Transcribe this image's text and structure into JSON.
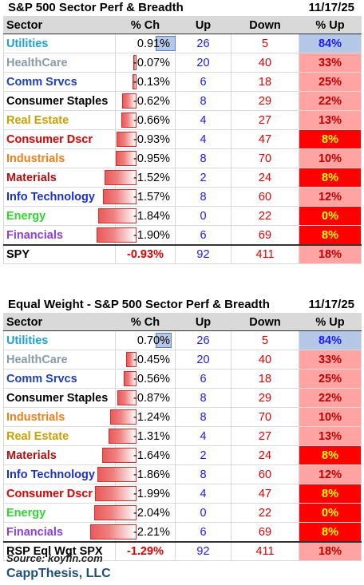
{
  "panel1": {
    "title": "S&P 500 Sector Perf & Breadth",
    "date": "11/17/25",
    "headers": [
      "Sector",
      "% Ch",
      "Up",
      "Down",
      "% Up"
    ],
    "rows": [
      {
        "name": "Utilities",
        "color": "#1ea0d8",
        "pct": "0.91%",
        "val": 0.91,
        "up": "26",
        "down": "5",
        "pctup": "84%",
        "upfill": "#b4c7e7"
      },
      {
        "name": "HealthCare",
        "color": "#8c9aa8",
        "pct": "-0.07%",
        "val": -0.07,
        "up": "20",
        "down": "40",
        "pctup": "33%",
        "upfill": "#ffa3a3"
      },
      {
        "name": "Comm Srvcs",
        "color": "#1f3fbf",
        "pct": "-0.13%",
        "val": -0.13,
        "up": "6",
        "down": "18",
        "pctup": "25%",
        "upfill": "#ffa3a3"
      },
      {
        "name": "Consumer Staples",
        "color": "#000000",
        "pct": "-0.62%",
        "val": -0.62,
        "up": "8",
        "down": "29",
        "pctup": "22%",
        "upfill": "#ffa3a3"
      },
      {
        "name": "Real Estate",
        "color": "#c9a000",
        "pct": "-0.66%",
        "val": -0.66,
        "up": "4",
        "down": "27",
        "pctup": "13%",
        "upfill": "#ffa3a3"
      },
      {
        "name": "Consumer Dscr",
        "color": "#e00000",
        "pct": "-0.93%",
        "val": -0.93,
        "up": "4",
        "down": "47",
        "pctup": "8%",
        "upfill": "#ff0000"
      },
      {
        "name": "Industrials",
        "color": "#f07f1a",
        "pct": "-0.95%",
        "val": -0.95,
        "up": "8",
        "down": "70",
        "pctup": "10%",
        "upfill": "#ffa3a3"
      },
      {
        "name": "Materials",
        "color": "#b01010",
        "pct": "-1.52%",
        "val": -1.52,
        "up": "2",
        "down": "24",
        "pctup": "8%",
        "upfill": "#ff0000"
      },
      {
        "name": "Info Technology",
        "color": "#1a2fd0",
        "pct": "-1.57%",
        "val": -1.57,
        "up": "8",
        "down": "60",
        "pctup": "12%",
        "upfill": "#ffa3a3"
      },
      {
        "name": "Energy",
        "color": "#2fd62f",
        "pct": "-1.84%",
        "val": -1.84,
        "up": "0",
        "down": "22",
        "pctup": "0%",
        "upfill": "#ff0000"
      },
      {
        "name": "Financials",
        "color": "#8a3fd8",
        "pct": "-1.90%",
        "val": -1.9,
        "up": "6",
        "down": "69",
        "pctup": "8%",
        "upfill": "#ff0000"
      }
    ],
    "summary": {
      "name": "SPY",
      "pct": "-0.93%",
      "up": "92",
      "down": "411",
      "pctup": "18%",
      "upfill": "#ffa3a3"
    }
  },
  "panel2": {
    "title": "Equal Weight - S&P 500 Sector Perf & Breadth",
    "date": "11/17/25",
    "headers": [
      "Sector",
      "% Ch",
      "Up",
      "Down",
      "% Up"
    ],
    "rows": [
      {
        "name": "Utilities",
        "color": "#1ea0d8",
        "pct": "0.70%",
        "val": 0.7,
        "up": "26",
        "down": "5",
        "pctup": "84%",
        "upfill": "#b4c7e7"
      },
      {
        "name": "HealthCare",
        "color": "#8c9aa8",
        "pct": "-0.45%",
        "val": -0.45,
        "up": "20",
        "down": "40",
        "pctup": "33%",
        "upfill": "#ffa3a3"
      },
      {
        "name": "Comm Srvcs",
        "color": "#1f3fbf",
        "pct": "-0.56%",
        "val": -0.56,
        "up": "6",
        "down": "18",
        "pctup": "25%",
        "upfill": "#ffa3a3"
      },
      {
        "name": "Consumer Staples",
        "color": "#000000",
        "pct": "-0.87%",
        "val": -0.87,
        "up": "8",
        "down": "29",
        "pctup": "22%",
        "upfill": "#ffa3a3"
      },
      {
        "name": "Industrials",
        "color": "#f07f1a",
        "pct": "-1.24%",
        "val": -1.24,
        "up": "8",
        "down": "70",
        "pctup": "10%",
        "upfill": "#ffa3a3"
      },
      {
        "name": "Real Estate",
        "color": "#c9a000",
        "pct": "-1.31%",
        "val": -1.31,
        "up": "4",
        "down": "27",
        "pctup": "13%",
        "upfill": "#ffa3a3"
      },
      {
        "name": "Materials",
        "color": "#b01010",
        "pct": "-1.64%",
        "val": -1.64,
        "up": "2",
        "down": "24",
        "pctup": "8%",
        "upfill": "#ff0000"
      },
      {
        "name": "Info Technology",
        "color": "#1a2fd0",
        "pct": "-1.86%",
        "val": -1.86,
        "up": "8",
        "down": "60",
        "pctup": "12%",
        "upfill": "#ffa3a3"
      },
      {
        "name": "Consumer Dscr",
        "color": "#e00000",
        "pct": "-1.99%",
        "val": -1.99,
        "up": "4",
        "down": "47",
        "pctup": "8%",
        "upfill": "#ff0000"
      },
      {
        "name": "Energy",
        "color": "#2fd62f",
        "pct": "-2.04%",
        "val": -2.04,
        "up": "0",
        "down": "22",
        "pctup": "0%",
        "upfill": "#ff0000"
      },
      {
        "name": "Financials",
        "color": "#8a3fd8",
        "pct": "-2.21%",
        "val": -2.21,
        "up": "6",
        "down": "69",
        "pctup": "8%",
        "upfill": "#ff0000"
      }
    ],
    "summary": {
      "name": "RSP Eql Wgt SPX",
      "pct": "-1.29%",
      "up": "92",
      "down": "411",
      "pctup": "18%",
      "upfill": "#ffa3a3"
    }
  },
  "footer": {
    "source": "Source: koyfin.com",
    "brand": "CappThesis, LLC"
  }
}
